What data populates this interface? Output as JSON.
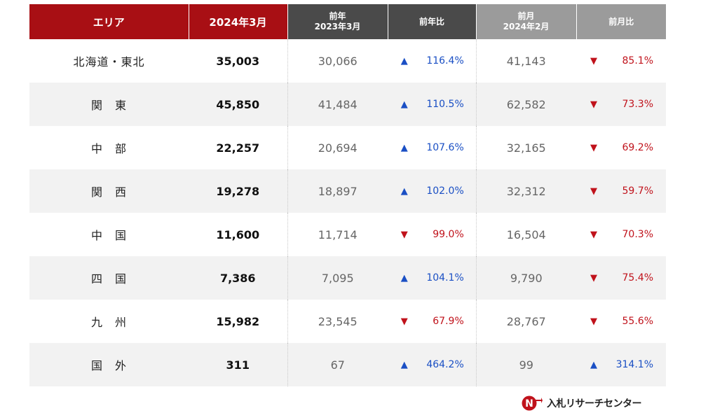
{
  "header": {
    "area": "エリア",
    "current": "2024年3月",
    "prev_year_line1": "前年",
    "prev_year_line2": "2023年3月",
    "yoy": "前年比",
    "prev_month_line1": "前月",
    "prev_month_line2": "2024年2月",
    "mom": "前月比"
  },
  "rows": [
    {
      "area": "北海道・東北",
      "current": "35,003",
      "prev_year": "30,066",
      "yoy": "116.4%",
      "yoy_dir": "up",
      "prev_month": "41,143",
      "mom": "85.1%",
      "mom_dir": "down"
    },
    {
      "area": "関　東",
      "current": "45,850",
      "prev_year": "41,484",
      "yoy": "110.5%",
      "yoy_dir": "up",
      "prev_month": "62,582",
      "mom": "73.3%",
      "mom_dir": "down"
    },
    {
      "area": "中　部",
      "current": "22,257",
      "prev_year": "20,694",
      "yoy": "107.6%",
      "yoy_dir": "up",
      "prev_month": "32,165",
      "mom": "69.2%",
      "mom_dir": "down"
    },
    {
      "area": "関　西",
      "current": "19,278",
      "prev_year": "18,897",
      "yoy": "102.0%",
      "yoy_dir": "up",
      "prev_month": "32,312",
      "mom": "59.7%",
      "mom_dir": "down"
    },
    {
      "area": "中　国",
      "current": "11,600",
      "prev_year": "11,714",
      "yoy": "99.0%",
      "yoy_dir": "down",
      "prev_month": "16,504",
      "mom": "70.3%",
      "mom_dir": "down"
    },
    {
      "area": "四　国",
      "current": "7,386",
      "prev_year": "7,095",
      "yoy": "104.1%",
      "yoy_dir": "up",
      "prev_month": "9,790",
      "mom": "75.4%",
      "mom_dir": "down"
    },
    {
      "area": "九　州",
      "current": "15,982",
      "prev_year": "23,545",
      "yoy": "67.9%",
      "yoy_dir": "down",
      "prev_month": "28,767",
      "mom": "55.6%",
      "mom_dir": "down"
    },
    {
      "area": "国　外",
      "current": "311",
      "prev_year": "67",
      "yoy": "464.2%",
      "yoy_dir": "up",
      "prev_month": "99",
      "mom": "314.1%",
      "mom_dir": "up"
    }
  ],
  "icons": {
    "up": "arrow-up-icon",
    "down": "arrow-down-icon"
  },
  "colors": {
    "header_red": "#a80f14",
    "header_dark": "#4a4a4a",
    "header_gray": "#9b9b9b",
    "up": "#1a4fc4",
    "down": "#c0121b"
  },
  "logo": {
    "text": "入札リサーチセンター",
    "mark": "N"
  }
}
